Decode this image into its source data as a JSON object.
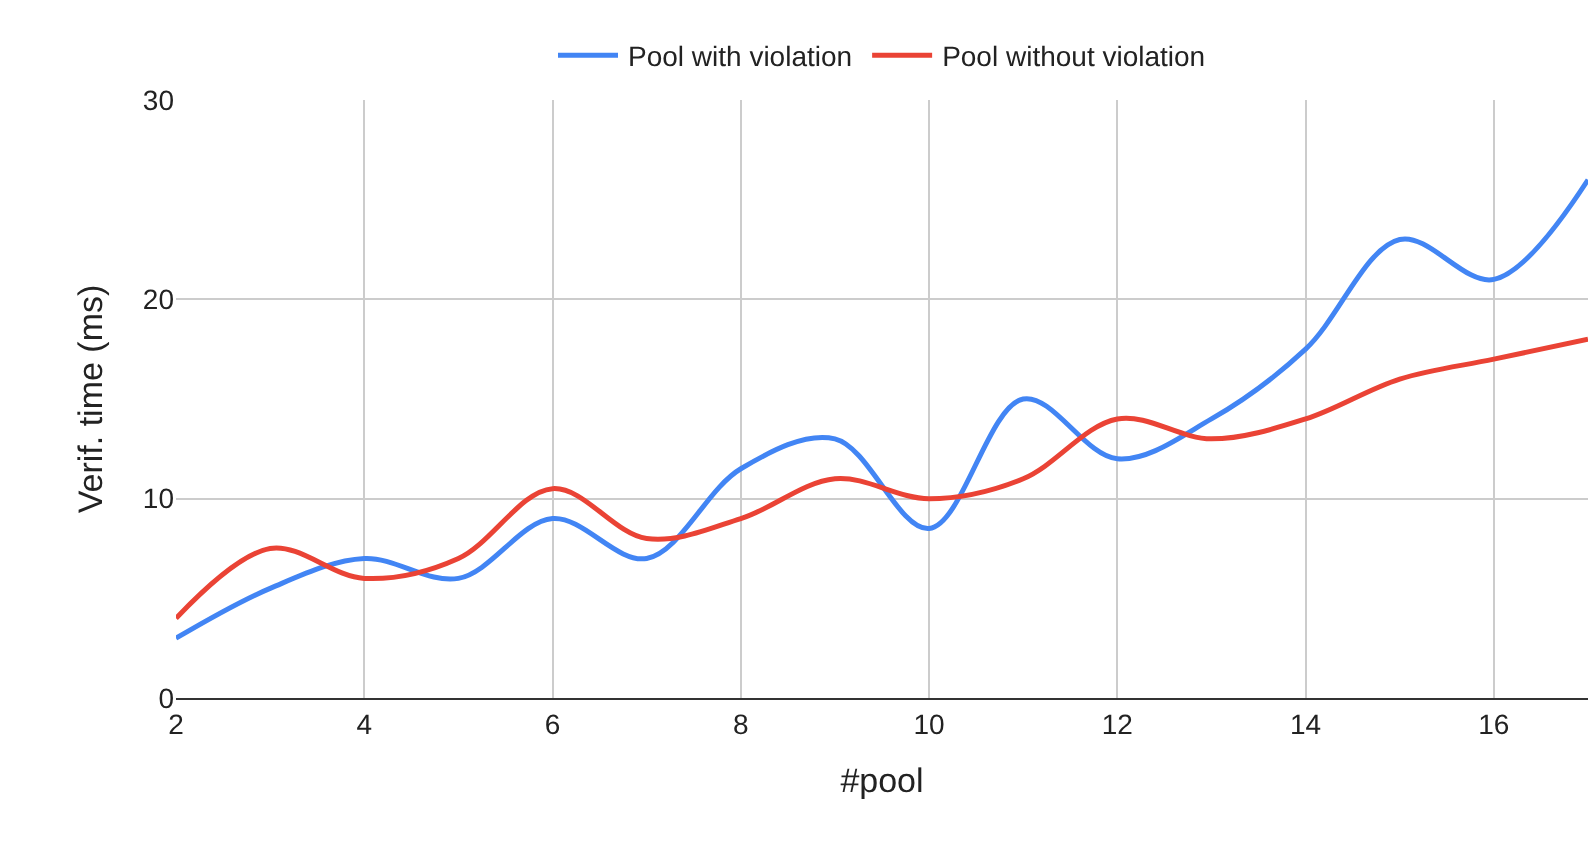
{
  "chart_data": {
    "type": "line",
    "xlabel": "#pool",
    "ylabel": "Verif. time (ms)",
    "x": [
      2,
      3,
      4,
      5,
      6,
      7,
      8,
      9,
      10,
      11,
      12,
      13,
      14,
      15,
      16,
      17
    ],
    "series": [
      {
        "name": "Pool with violation",
        "color": "#4285f4",
        "values": [
          3,
          5.5,
          7,
          6,
          9,
          7,
          11.5,
          13,
          8.5,
          15,
          12,
          14,
          17.5,
          23,
          21,
          26
        ]
      },
      {
        "name": "Pool without violation",
        "color": "#ea4335",
        "values": [
          4,
          7.5,
          6,
          7,
          10.5,
          8,
          9,
          11,
          10,
          11,
          14,
          13,
          14,
          16,
          17,
          18
        ]
      }
    ],
    "xlim": [
      2,
      17
    ],
    "xticks": [
      2,
      4,
      6,
      8,
      10,
      12,
      14,
      16
    ],
    "ylim": [
      0,
      30
    ],
    "yticks": [
      0,
      10,
      20,
      30
    ],
    "grid": true,
    "legend": "top",
    "marker": "none",
    "line_style": "solid"
  }
}
